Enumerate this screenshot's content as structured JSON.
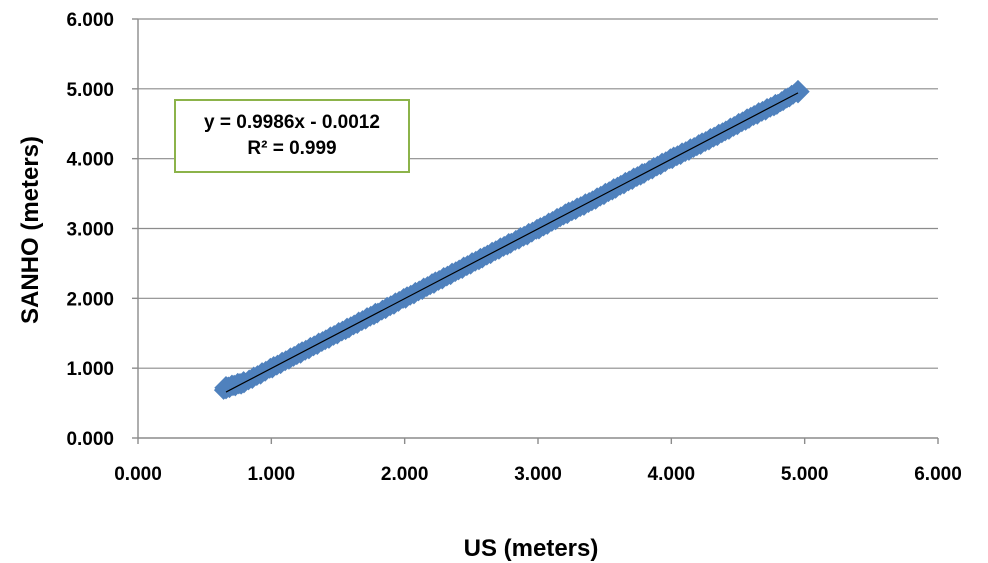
{
  "chart_data": {
    "type": "scatter",
    "title": "",
    "xlabel": "US (meters)",
    "ylabel": "SANHO (meters)",
    "xlim": [
      0,
      6
    ],
    "ylim": [
      0,
      6
    ],
    "x_ticks": [
      "0.000",
      "1.000",
      "2.000",
      "3.000",
      "4.000",
      "5.000",
      "6.000"
    ],
    "y_ticks": [
      "0.000",
      "1.000",
      "2.000",
      "3.000",
      "4.000",
      "5.000",
      "6.000"
    ],
    "grid": "horizontal",
    "marker_color": "#4f81bd",
    "marker_shape": "diamond",
    "trendline_color": "#000000",
    "equation_box_border": "#8cb34a",
    "series": [
      {
        "x": [
          0.66,
          0.8,
          1.0,
          1.2,
          1.4,
          1.6,
          1.8,
          2.0,
          2.2,
          2.4,
          2.6,
          2.8,
          3.0,
          3.2,
          3.4,
          3.6,
          3.8,
          4.0,
          4.2,
          4.4,
          4.6,
          4.8,
          4.95
        ],
        "y": [
          0.72,
          0.8,
          1.0,
          1.2,
          1.4,
          1.6,
          1.8,
          2.0,
          2.2,
          2.4,
          2.6,
          2.8,
          2.99,
          3.2,
          3.39,
          3.6,
          3.8,
          4.0,
          4.19,
          4.39,
          4.6,
          4.79,
          4.96
        ]
      }
    ],
    "trendline": {
      "slope": 0.9986,
      "intercept": -0.0012,
      "x_range": [
        0.66,
        4.95
      ],
      "equation": "y = 0.9986x - 0.0012",
      "r_squared": "R² = 0.999"
    }
  }
}
